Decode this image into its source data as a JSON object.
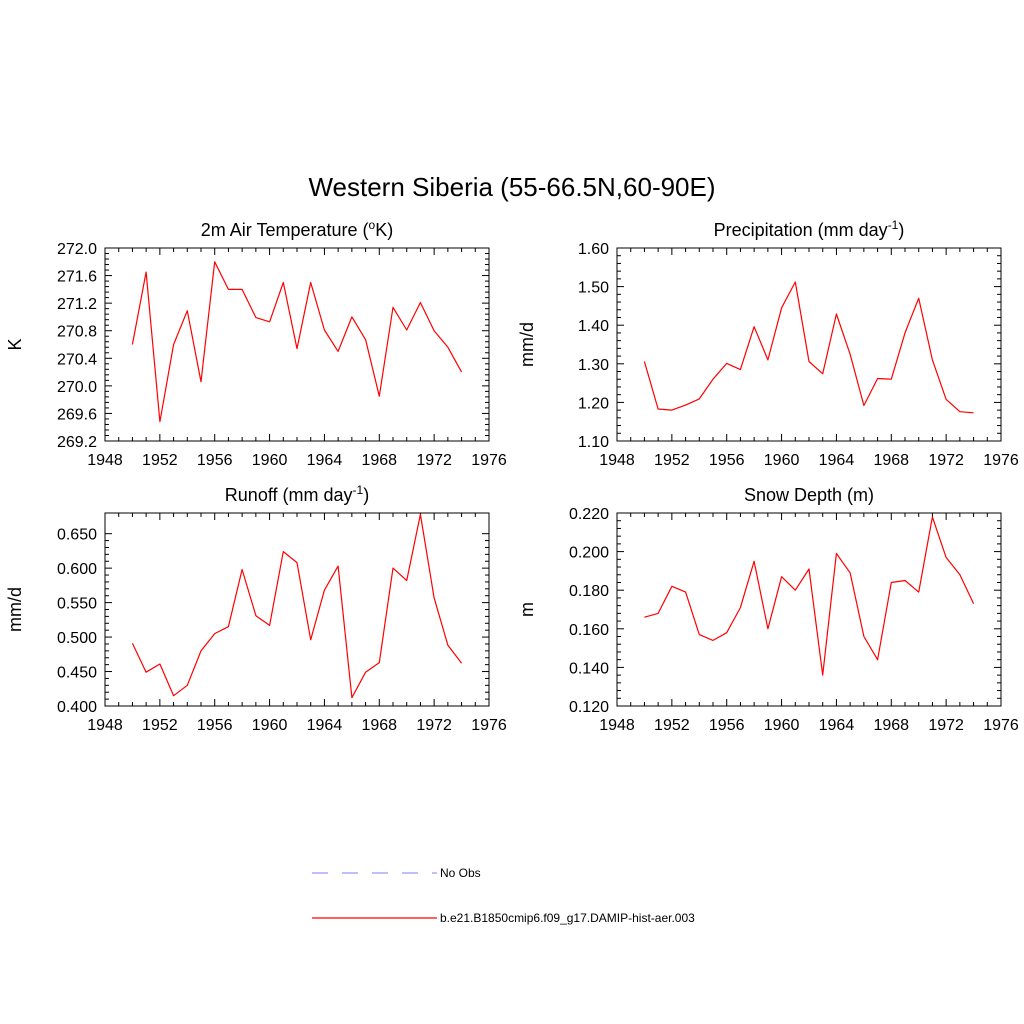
{
  "figure": {
    "title": "Western Siberia (55-66.5N,60-90E)",
    "legend": {
      "items": [
        {
          "label": "No Obs",
          "color": "#9999ff",
          "style": "dashed"
        },
        {
          "label": "b.e21.B1850cmip6.f09_g17.DAMIP-hist-aer.003",
          "color": "#ff0000",
          "style": "solid"
        }
      ]
    }
  },
  "chart_data": [
    {
      "type": "line",
      "title": "2m Air Temperature (",
      "title_sup": "o",
      "title_suffix": "K)",
      "ylabel": "K",
      "xlim": [
        1948,
        1976
      ],
      "ylim": [
        269.2,
        272.0
      ],
      "xticks": [
        1948,
        1952,
        1956,
        1960,
        1964,
        1968,
        1972,
        1976
      ],
      "xtick_labels": [
        "1948",
        "1952",
        "1956",
        "1960",
        "1964",
        "1968",
        "1972",
        "1976"
      ],
      "yticks": [
        269.2,
        269.6,
        270.0,
        270.4,
        270.8,
        271.2,
        271.6,
        272.0
      ],
      "ytick_labels": [
        "269.2",
        "269.6",
        "270.0",
        "270.4",
        "270.8",
        "271.2",
        "271.6",
        "272.0"
      ],
      "series": [
        {
          "color": "#ff0000",
          "x": [
            1950,
            1951,
            1952,
            1953,
            1954,
            1955,
            1956,
            1957,
            1958,
            1959,
            1960,
            1961,
            1962,
            1963,
            1964,
            1965,
            1966,
            1967,
            1968,
            1969,
            1970,
            1971,
            1972,
            1973,
            1974
          ],
          "y": [
            270.6,
            271.65,
            269.48,
            270.6,
            271.09,
            270.06,
            271.8,
            271.4,
            271.4,
            270.99,
            270.93,
            271.5,
            270.54,
            271.5,
            270.81,
            270.5,
            271.0,
            270.67,
            269.85,
            271.14,
            270.81,
            271.21,
            270.8,
            270.56,
            270.2
          ]
        }
      ]
    },
    {
      "type": "line",
      "title": "Precipitation (mm day",
      "title_sup": "-1",
      "title_suffix": ")",
      "ylabel": "mm/d",
      "xlim": [
        1948,
        1976
      ],
      "ylim": [
        1.1,
        1.6
      ],
      "xticks": [
        1948,
        1952,
        1956,
        1960,
        1964,
        1968,
        1972,
        1976
      ],
      "xtick_labels": [
        "1948",
        "1952",
        "1956",
        "1960",
        "1964",
        "1968",
        "1972",
        "1976"
      ],
      "yticks": [
        1.1,
        1.2,
        1.3,
        1.4,
        1.5,
        1.6
      ],
      "ytick_labels": [
        "1.10",
        "1.20",
        "1.30",
        "1.40",
        "1.50",
        "1.60"
      ],
      "series": [
        {
          "color": "#ff0000",
          "x": [
            1950,
            1951,
            1952,
            1953,
            1954,
            1955,
            1956,
            1957,
            1958,
            1959,
            1960,
            1961,
            1962,
            1963,
            1964,
            1965,
            1966,
            1967,
            1968,
            1969,
            1970,
            1971,
            1972,
            1973,
            1974
          ],
          "y": [
            1.306,
            1.183,
            1.18,
            1.193,
            1.209,
            1.26,
            1.301,
            1.285,
            1.396,
            1.31,
            1.445,
            1.512,
            1.306,
            1.274,
            1.429,
            1.325,
            1.192,
            1.262,
            1.26,
            1.38,
            1.47,
            1.31,
            1.208,
            1.176,
            1.173
          ]
        }
      ]
    },
    {
      "type": "line",
      "title": "Runoff (mm day",
      "title_sup": "-1",
      "title_suffix": ")",
      "ylabel": "mm/d",
      "xlim": [
        1948,
        1976
      ],
      "ylim": [
        0.4,
        0.68
      ],
      "xticks": [
        1948,
        1952,
        1956,
        1960,
        1964,
        1968,
        1972,
        1976
      ],
      "xtick_labels": [
        "1948",
        "1952",
        "1956",
        "1960",
        "1964",
        "1968",
        "1972",
        "1976"
      ],
      "yticks": [
        0.4,
        0.45,
        0.5,
        0.55,
        0.6,
        0.65
      ],
      "ytick_labels": [
        "0.400",
        "0.450",
        "0.500",
        "0.550",
        "0.600",
        "0.650"
      ],
      "series": [
        {
          "color": "#ff0000",
          "x": [
            1950,
            1951,
            1952,
            1953,
            1954,
            1955,
            1956,
            1957,
            1958,
            1959,
            1960,
            1961,
            1962,
            1963,
            1964,
            1965,
            1966,
            1967,
            1968,
            1969,
            1970,
            1971,
            1972,
            1973,
            1974
          ],
          "y": [
            0.491,
            0.449,
            0.461,
            0.415,
            0.43,
            0.48,
            0.505,
            0.515,
            0.598,
            0.531,
            0.517,
            0.624,
            0.608,
            0.496,
            0.568,
            0.603,
            0.412,
            0.449,
            0.463,
            0.6,
            0.582,
            0.678,
            0.557,
            0.488,
            0.462
          ]
        }
      ]
    },
    {
      "type": "line",
      "title": "Snow Depth (m)",
      "title_sup": "",
      "title_suffix": "",
      "ylabel": "m",
      "xlim": [
        1948,
        1976
      ],
      "ylim": [
        0.12,
        0.22
      ],
      "xticks": [
        1948,
        1952,
        1956,
        1960,
        1964,
        1968,
        1972,
        1976
      ],
      "xtick_labels": [
        "1948",
        "1952",
        "1956",
        "1960",
        "1964",
        "1968",
        "1972",
        "1976"
      ],
      "yticks": [
        0.12,
        0.14,
        0.16,
        0.18,
        0.2,
        0.22
      ],
      "ytick_labels": [
        "0.120",
        "0.140",
        "0.160",
        "0.180",
        "0.200",
        "0.220"
      ],
      "series": [
        {
          "color": "#ff0000",
          "x": [
            1950,
            1951,
            1952,
            1953,
            1954,
            1955,
            1956,
            1957,
            1958,
            1959,
            1960,
            1961,
            1962,
            1963,
            1964,
            1965,
            1966,
            1967,
            1968,
            1969,
            1970,
            1971,
            1972,
            1973,
            1974
          ],
          "y": [
            0.166,
            0.168,
            0.182,
            0.179,
            0.157,
            0.154,
            0.158,
            0.171,
            0.195,
            0.16,
            0.187,
            0.18,
            0.191,
            0.136,
            0.199,
            0.189,
            0.156,
            0.144,
            0.184,
            0.185,
            0.179,
            0.218,
            0.197,
            0.188,
            0.173
          ]
        }
      ]
    }
  ]
}
